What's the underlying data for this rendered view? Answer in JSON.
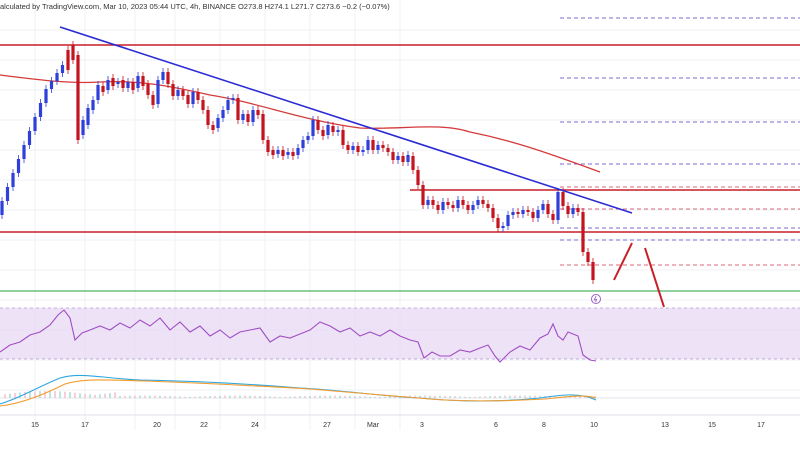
{
  "header": {
    "text": "alculated by TradingView.com, Mar 10, 2023 05:44 UTC"
  },
  "chart_data": {
    "type": "candlestick",
    "panels": [
      "price",
      "rsi",
      "macd"
    ],
    "symbol_line": {
      "timeframe": "4h",
      "exchange": "BINANCE",
      "open": "O273.8",
      "high": "H274.1",
      "low": "L271.7",
      "close": "C273.6",
      "change": "−0.2 (−0.07%)"
    },
    "x_tick_labels": [
      "15",
      "17",
      "20",
      "22",
      "24",
      "27",
      "Mar",
      "3",
      "6",
      "8",
      "10",
      "13",
      "15",
      "17"
    ],
    "colors": {
      "bull": "#2f3fd9",
      "bear": "#c4141f",
      "trendline": "#2b2bd6",
      "resistance": "#c81e28",
      "moving_average": "#d43a3a",
      "support": "#1fa33a",
      "rsi_line": "#a04ec4",
      "rsi_band": "#e7d8f3",
      "macd_line": "#2ea6de",
      "signal_line": "#f49b2d",
      "dashed_purple": "#7c6ad6",
      "dashed_red": "#d9677a"
    }
  }
}
